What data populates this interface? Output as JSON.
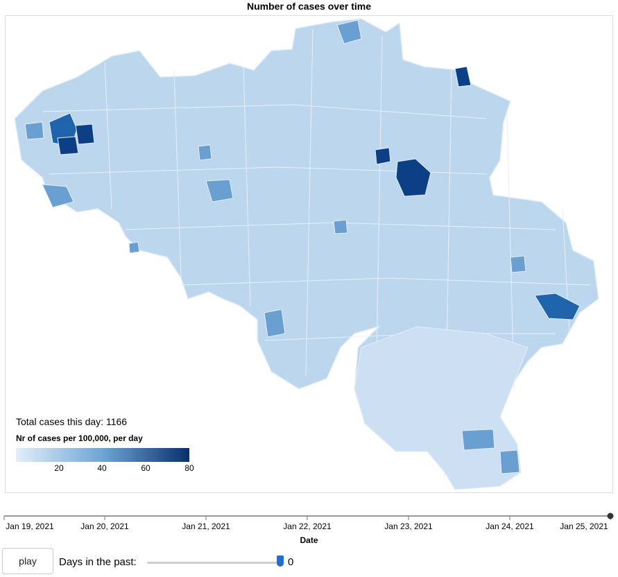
{
  "title": "Number of cases over time",
  "map": {
    "total_label": "Total cases this day: 1166",
    "legend": {
      "title": "Nr of cases per 100,000, per day",
      "ticks": [
        "20",
        "40",
        "60",
        "80"
      ],
      "color_low": "#e3eef9",
      "color_high": "#08306b"
    }
  },
  "timeline": {
    "dates": [
      "Jan 19, 2021",
      "Jan 20, 2021",
      "Jan 21, 2021",
      "Jan 22, 2021",
      "Jan 23, 2021",
      "Jan 24, 2021",
      "Jan 25, 2021"
    ],
    "axis_title": "Date",
    "current": "Jan 25, 2021"
  },
  "controls": {
    "play_label": "play",
    "days_label": "Days in the past:",
    "days_value": "0",
    "days_value_fraction": 1.0
  }
}
